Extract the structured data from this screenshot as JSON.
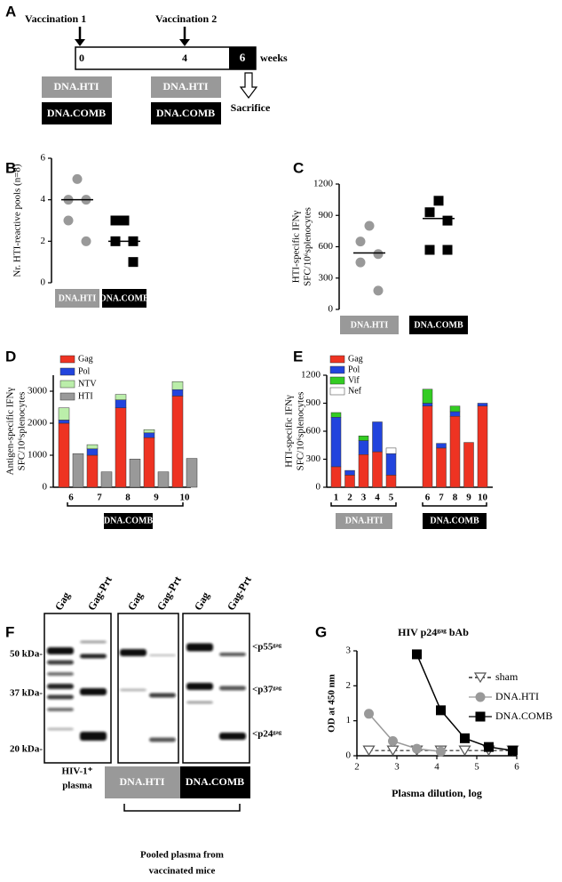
{
  "panel_a": {
    "label": "A",
    "vaccination_1": "Vaccination 1",
    "vaccination_2": "Vaccination 2",
    "timeline": [
      "0",
      "4",
      "6"
    ],
    "unit": "weeks",
    "groups": [
      "DNA.HTI",
      "DNA.COMB"
    ],
    "endpoint": "Sacrifice"
  },
  "chart_data": [
    {
      "type": "dotplot",
      "panel": "B",
      "ylabel": [
        "Nr. HTI-reactive pools (n=8)"
      ],
      "ylim": [
        0,
        6
      ],
      "yticks": [
        0,
        2,
        4,
        6
      ],
      "categories": [
        "DNA.HTI",
        "DNA.COMB"
      ],
      "values": [
        [
          5,
          4,
          4,
          3,
          2
        ],
        [
          3,
          3,
          2,
          2,
          1
        ]
      ],
      "medians": [
        4,
        2
      ],
      "colors": [
        "#999999",
        "#000000"
      ],
      "markers": [
        "circle",
        "square"
      ]
    },
    {
      "type": "dotplot",
      "panel": "C",
      "ylabel": [
        "HTI-specific IFNγ",
        "SFC/10⁶splenocytes"
      ],
      "ylim": [
        0,
        1200
      ],
      "yticks": [
        0,
        300,
        600,
        900,
        1200
      ],
      "categories": [
        "DNA.HTI",
        "DNA.COMB"
      ],
      "values": [
        [
          800,
          650,
          530,
          450,
          180
        ],
        [
          1040,
          930,
          850,
          570,
          570
        ]
      ],
      "medians": [
        540,
        870
      ],
      "colors": [
        "#999999",
        "#000000"
      ],
      "markers": [
        "circle",
        "square"
      ]
    },
    {
      "type": "stacked_bar",
      "panel": "D",
      "ylabel": [
        "Antigen-specific IFNγ",
        "SFC/10⁶splenocytes"
      ],
      "ylim": [
        0,
        3500
      ],
      "yticks": [
        0,
        1000,
        2000,
        3000
      ],
      "categories": [
        "6",
        "7",
        "8",
        "9",
        "10"
      ],
      "group_labels": [
        "DNA.COMB"
      ],
      "series": [
        {
          "name": "Gag",
          "color": "#ee3322",
          "stack": 0,
          "values": [
            2000,
            1000,
            2480,
            1550,
            2850
          ]
        },
        {
          "name": "Pol",
          "color": "#2244dd",
          "stack": 0,
          "values": [
            100,
            200,
            250,
            150,
            200
          ]
        },
        {
          "name": "NTV",
          "color": "#bbeeaa",
          "stack": 0,
          "values": [
            380,
            130,
            170,
            100,
            250
          ]
        },
        {
          "name": "HTI",
          "color": "#999999",
          "stack": 1,
          "values": [
            1050,
            480,
            880,
            480,
            900
          ]
        }
      ]
    },
    {
      "type": "stacked_bar",
      "panel": "E",
      "ylabel": [
        "HTI-specific IFNγ",
        "SFC/10⁶splenocytes"
      ],
      "ylim": [
        0,
        1200
      ],
      "yticks": [
        0,
        300,
        600,
        900,
        1200
      ],
      "categories": [
        "1",
        "2",
        "3",
        "4",
        "5",
        "6",
        "7",
        "8",
        "9",
        "10"
      ],
      "group_labels": [
        "DNA.HTI",
        "DNA.COMB"
      ],
      "series": [
        {
          "name": "Gag",
          "color": "#ee3322",
          "stack": 0,
          "values": [
            220,
            130,
            350,
            380,
            130,
            870,
            420,
            760,
            480,
            870
          ]
        },
        {
          "name": "Pol",
          "color": "#2244dd",
          "stack": 0,
          "values": [
            530,
            50,
            150,
            320,
            230,
            30,
            50,
            50,
            0,
            30
          ]
        },
        {
          "name": "Vif",
          "color": "#33cc22",
          "stack": 0,
          "values": [
            50,
            0,
            50,
            0,
            0,
            150,
            0,
            60,
            0,
            0
          ]
        },
        {
          "name": "Nef",
          "color": "#ffffff",
          "stack": 0,
          "values": [
            0,
            0,
            0,
            0,
            60,
            0,
            0,
            0,
            0,
            0
          ]
        }
      ]
    },
    {
      "type": "line",
      "panel": "G",
      "title": "HIV p24ᵍᵃᵍ bAb",
      "xlabel": "Plasma dilution, log",
      "ylabel": [
        "OD at 450 nm"
      ],
      "xlim": [
        2,
        6
      ],
      "xticks": [
        2,
        3,
        4,
        5,
        6
      ],
      "ylim": [
        0,
        3
      ],
      "yticks": [
        0,
        1,
        2,
        3
      ],
      "series": [
        {
          "name": "sham",
          "color": "#555555",
          "marker": "triangle",
          "dashed": true,
          "x": [
            2.3,
            2.9,
            3.5,
            4.1,
            4.7,
            5.3,
            5.9
          ],
          "values": [
            0.15,
            0.15,
            0.15,
            0.15,
            0.15,
            0.15,
            0.15
          ]
        },
        {
          "name": "DNA.HTI",
          "color": "#999999",
          "marker": "circle",
          "x": [
            2.3,
            2.9,
            3.5,
            4.1
          ],
          "values": [
            1.2,
            0.42,
            0.2,
            0.12
          ]
        },
        {
          "name": "DNA.COMB",
          "color": "#000000",
          "marker": "square",
          "x": [
            3.5,
            4.1,
            4.7,
            5.3,
            5.9
          ],
          "values": [
            2.9,
            1.3,
            0.5,
            0.25,
            0.15
          ]
        }
      ]
    }
  ],
  "panel_f": {
    "label": "F",
    "lanes": [
      "Gag",
      "Gag-Prt"
    ],
    "markers": [
      "50 kDa-",
      "37 kDa-",
      "20 kDa-"
    ],
    "bands": [
      "<p55ᵍᵃᵍ",
      "<p37ᵍᵃᵍ",
      "<p24ᵍᵃᵍ"
    ],
    "sources": [
      [
        "HIV-1⁺",
        "plasma"
      ],
      "DNA.HTI",
      "DNA.COMB"
    ],
    "note": [
      "Pooled plasma from",
      "vaccinated mice"
    ]
  }
}
